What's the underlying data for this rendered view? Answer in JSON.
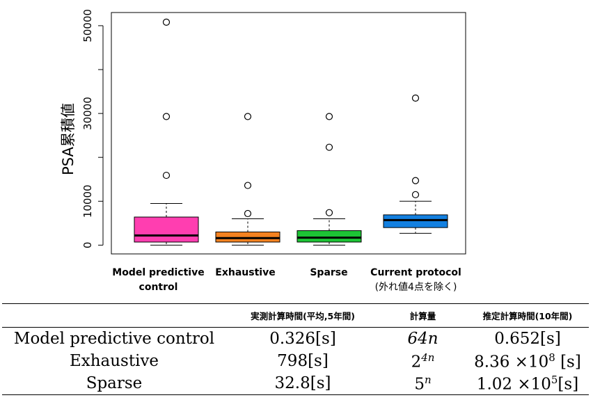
{
  "chart_data": {
    "type": "box",
    "ylabel": "PSA累積値",
    "ylim": [
      -2000,
      53000
    ],
    "yticks": [
      0,
      10000,
      30000,
      50000
    ],
    "yticklabels": [
      "0",
      "10000",
      "30000",
      "50000"
    ],
    "grid": false,
    "boxes": [
      {
        "label": "Model predictive control",
        "sublabel": "",
        "color": "#FF3EB0",
        "whisker_low": 0,
        "q1": 700,
        "median": 2200,
        "q3": 6400,
        "whisker_high": 9500,
        "outliers": [
          50800,
          29300,
          15900
        ]
      },
      {
        "label": "Exhaustive",
        "sublabel": "",
        "color": "#F58220",
        "whisker_low": 0,
        "q1": 700,
        "median": 1600,
        "q3": 3000,
        "whisker_high": 6000,
        "outliers": [
          29300,
          13600,
          7200
        ]
      },
      {
        "label": "Sparse",
        "sublabel": "",
        "color": "#1DC435",
        "whisker_low": 0,
        "q1": 700,
        "median": 1700,
        "q3": 3300,
        "whisker_high": 6000,
        "outliers": [
          29300,
          22300,
          7400
        ]
      },
      {
        "label": "Current protocol",
        "sublabel": "(外れ値4点を除く)",
        "color": "#1380E0",
        "whisker_low": 2700,
        "q1": 4000,
        "median": 5700,
        "q3": 6900,
        "whisker_high": 10000,
        "outliers": [
          33500,
          14700,
          11500
        ]
      }
    ]
  },
  "table": {
    "headers": [
      "",
      "実測計算時間(平均,5年間)",
      "計算量",
      "推定計算時間(10年間)"
    ],
    "rows": [
      {
        "name": "Model predictive control",
        "measured": "0.326[s]",
        "complexity_base": "64n",
        "complexity_exp": "",
        "estimated": "0.652[s]",
        "estimated_exp": ""
      },
      {
        "name": "Exhaustive",
        "measured": "798[s]",
        "complexity_base": "2",
        "complexity_exp": "4n",
        "estimated": "8.36 ×10",
        "estimated_exp": "8",
        "estimated_unit": " [s]"
      },
      {
        "name": "Sparse",
        "measured": "32.8[s]",
        "complexity_base": "5",
        "complexity_exp": "n",
        "estimated": "1.02 ×10",
        "estimated_exp": "5",
        "estimated_unit": "[s]"
      }
    ]
  }
}
